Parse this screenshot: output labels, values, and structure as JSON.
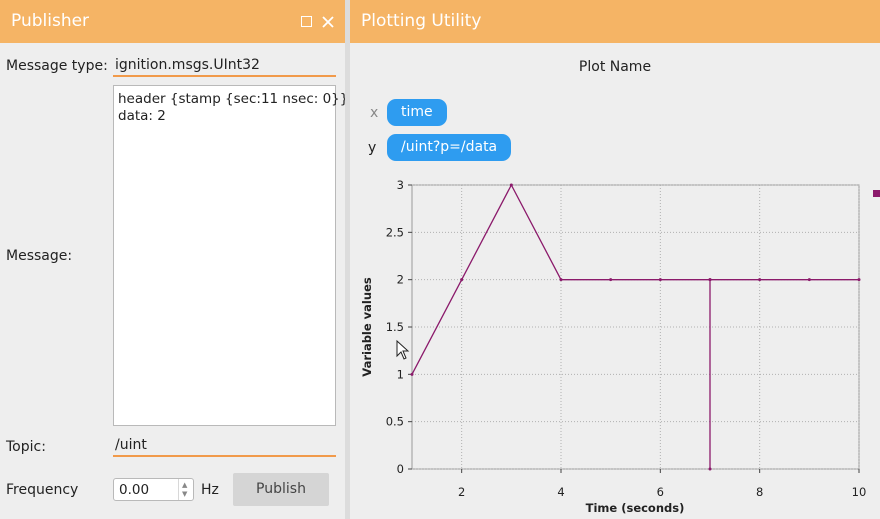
{
  "publisher": {
    "title": "Publisher",
    "message_type_label": "Message type:",
    "message_type_value": "ignition.msgs.UInt32",
    "message_label": "Message:",
    "message_text": "header {stamp {sec:11 nsec: 0}}\ndata: 2",
    "topic_label": "Topic:",
    "topic_value": "/uint",
    "frequency_label": "Frequency",
    "frequency_value": "0.00",
    "frequency_unit": "Hz",
    "publish_label": "Publish",
    "icons": [
      "maximize-icon",
      "close-icon"
    ]
  },
  "plotter": {
    "title": "Plotting Utility",
    "plot_name": "Plot Name",
    "x_letter": "x",
    "x_variable": "time",
    "y_letter": "y",
    "y_variable": "/uint?p=/data",
    "colors": {
      "accent": "#f5b465",
      "pill": "#2e9cf0",
      "series": "#8b1a6b"
    }
  },
  "chart_data": {
    "type": "line",
    "xlabel": "Time (seconds)",
    "ylabel": "Variable values",
    "xlim": [
      1,
      10
    ],
    "ylim": [
      0,
      3
    ],
    "x_ticks": [
      "2",
      "4",
      "6",
      "8",
      "10"
    ],
    "y_ticks": [
      "0",
      "0.5",
      "1",
      "1.5",
      "2",
      "2.5",
      "3"
    ],
    "grid": true,
    "series": [
      {
        "x": [
          1,
          2,
          3,
          4,
          5,
          6,
          7,
          7,
          7,
          8,
          9,
          10
        ],
        "y": [
          1,
          2,
          3,
          2,
          2,
          2,
          2,
          0,
          2,
          2,
          2,
          2
        ],
        "color": "#8b1a6b"
      }
    ]
  }
}
